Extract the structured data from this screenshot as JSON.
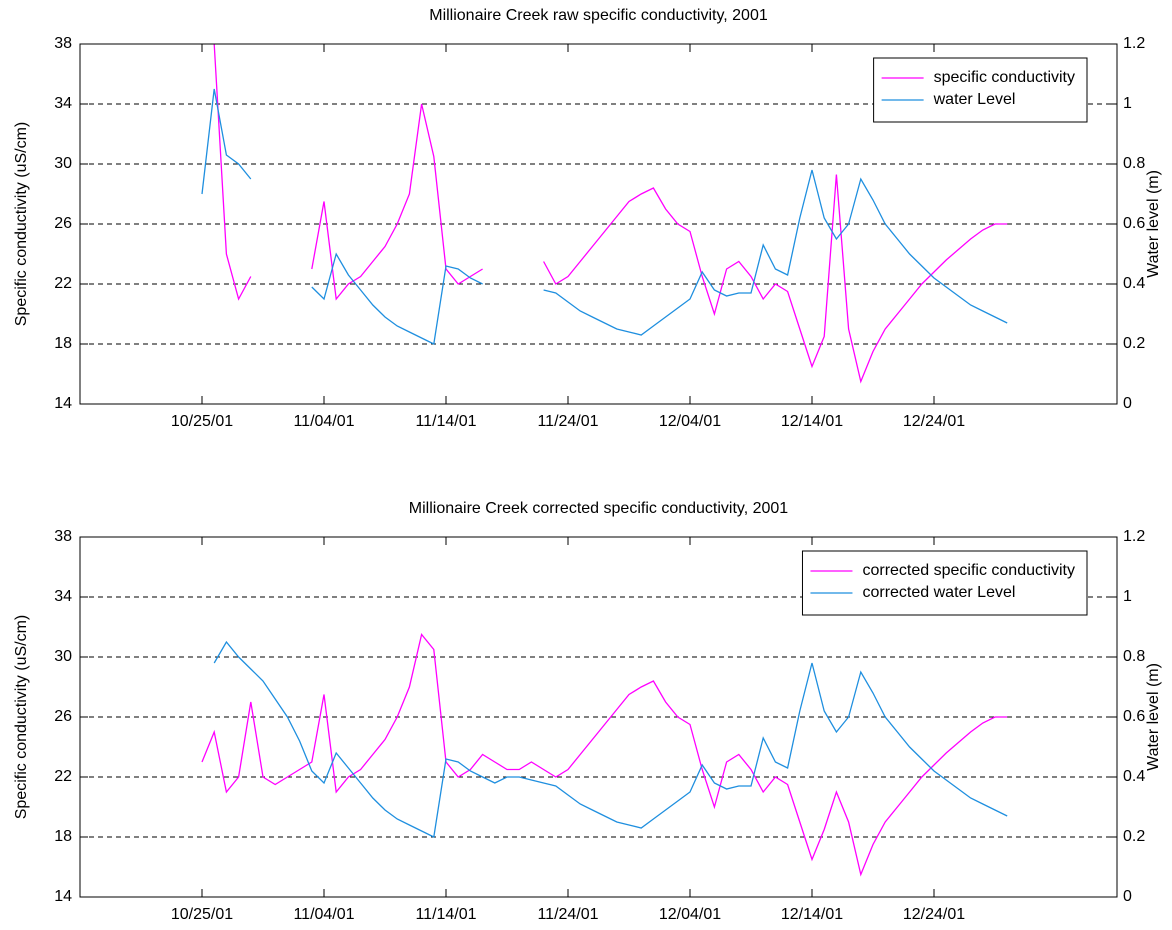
{
  "chart_data": [
    {
      "type": "line",
      "title": "Millionaire Creek raw specific conductivity, 2001",
      "ylabel": "Specific conductivity (uS/cm)",
      "y2label": "Water level (m)",
      "x": [
        "2001-10-25",
        "2001-10-26",
        "2001-10-27",
        "2001-10-28",
        "2001-10-29",
        "2001-10-30",
        "2001-10-31",
        "2001-11-01",
        "2001-11-02",
        "2001-11-03",
        "2001-11-04",
        "2001-11-05",
        "2001-11-06",
        "2001-11-07",
        "2001-11-08",
        "2001-11-09",
        "2001-11-10",
        "2001-11-11",
        "2001-11-12",
        "2001-11-13",
        "2001-11-14",
        "2001-11-15",
        "2001-11-16",
        "2001-11-17",
        "2001-11-18",
        "2001-11-19",
        "2001-11-20",
        "2001-11-21",
        "2001-11-22",
        "2001-11-23",
        "2001-11-24",
        "2001-11-25",
        "2001-11-26",
        "2001-11-27",
        "2001-11-28",
        "2001-11-29",
        "2001-11-30",
        "2001-12-01",
        "2001-12-02",
        "2001-12-03",
        "2001-12-04",
        "2001-12-05",
        "2001-12-06",
        "2001-12-07",
        "2001-12-08",
        "2001-12-09",
        "2001-12-10",
        "2001-12-11",
        "2001-12-12",
        "2001-12-13",
        "2001-12-14",
        "2001-12-15",
        "2001-12-16",
        "2001-12-17",
        "2001-12-18",
        "2001-12-19",
        "2001-12-20",
        "2001-12-21",
        "2001-12-22",
        "2001-12-23",
        "2001-12-24",
        "2001-12-25",
        "2001-12-26",
        "2001-12-27",
        "2001-12-28",
        "2001-12-29",
        "2001-12-30"
      ],
      "xlim": [
        "2001-10-15",
        "2002-01-08"
      ],
      "xticks": [
        {
          "value": "2001-10-25",
          "label": "10/25/01"
        },
        {
          "value": "2001-11-04",
          "label": "11/04/01"
        },
        {
          "value": "2001-11-14",
          "label": "11/14/01"
        },
        {
          "value": "2001-11-24",
          "label": "11/24/01"
        },
        {
          "value": "2001-12-04",
          "label": "12/04/01"
        },
        {
          "value": "2001-12-14",
          "label": "12/14/01"
        },
        {
          "value": "2001-12-24",
          "label": "12/24/01"
        }
      ],
      "ylim": [
        14,
        38
      ],
      "yticks": [
        14,
        18,
        22,
        26,
        30,
        34,
        38
      ],
      "y2lim": [
        0,
        1.2
      ],
      "y2ticks": [
        0,
        0.2,
        0.4,
        0.6,
        0.8,
        1,
        1.2
      ],
      "grid": "y",
      "legend": "upper right",
      "series": [
        {
          "name": "specific conductivity",
          "color": "#ff00ff",
          "values": [
            null,
            38,
            24,
            21,
            22.5,
            null,
            null,
            null,
            null,
            23,
            27.5,
            21,
            22,
            22.5,
            23.5,
            24.5,
            26,
            28,
            34,
            30.5,
            23,
            22,
            22.5,
            23,
            null,
            null,
            null,
            null,
            23.5,
            22,
            22.5,
            23.5,
            24.5,
            25.5,
            26.5,
            27.5,
            28,
            28.4,
            27,
            26,
            25.5,
            22.5,
            20,
            23,
            23.5,
            22.5,
            21,
            22,
            21.5,
            19,
            16.5,
            18.5,
            29.3,
            19,
            15.5,
            17.5,
            19,
            20,
            21,
            22,
            22.8,
            23.6,
            24.3,
            25,
            25.6,
            26,
            26
          ]
        },
        {
          "name": "water Level",
          "color": "#1f8fdf",
          "axis": "y2",
          "values": [
            0.7,
            1.05,
            0.83,
            0.8,
            0.75,
            null,
            null,
            null,
            null,
            0.39,
            0.35,
            0.5,
            0.43,
            0.38,
            0.33,
            0.29,
            0.26,
            0.24,
            0.22,
            0.2,
            0.46,
            0.45,
            0.42,
            0.4,
            null,
            null,
            null,
            null,
            0.38,
            0.37,
            0.34,
            0.31,
            0.29,
            0.27,
            0.25,
            0.24,
            0.23,
            0.26,
            0.29,
            0.32,
            0.35,
            0.44,
            0.38,
            0.36,
            0.37,
            0.37,
            0.53,
            0.45,
            0.43,
            0.62,
            0.78,
            0.62,
            0.55,
            0.6,
            0.75,
            0.68,
            0.6,
            0.55,
            0.5,
            0.46,
            0.42,
            0.39,
            0.36,
            0.33,
            0.31,
            0.29,
            0.27
          ]
        }
      ]
    },
    {
      "type": "line",
      "title": "Millionaire Creek corrected specific conductivity, 2001",
      "ylabel": "Specific conductivity (uS/cm)",
      "y2label": "Water level (m)",
      "x": [
        "2001-10-25",
        "2001-10-26",
        "2001-10-27",
        "2001-10-28",
        "2001-10-29",
        "2001-10-30",
        "2001-10-31",
        "2001-11-01",
        "2001-11-02",
        "2001-11-03",
        "2001-11-04",
        "2001-11-05",
        "2001-11-06",
        "2001-11-07",
        "2001-11-08",
        "2001-11-09",
        "2001-11-10",
        "2001-11-11",
        "2001-11-12",
        "2001-11-13",
        "2001-11-14",
        "2001-11-15",
        "2001-11-16",
        "2001-11-17",
        "2001-11-18",
        "2001-11-19",
        "2001-11-20",
        "2001-11-21",
        "2001-11-22",
        "2001-11-23",
        "2001-11-24",
        "2001-11-25",
        "2001-11-26",
        "2001-11-27",
        "2001-11-28",
        "2001-11-29",
        "2001-11-30",
        "2001-12-01",
        "2001-12-02",
        "2001-12-03",
        "2001-12-04",
        "2001-12-05",
        "2001-12-06",
        "2001-12-07",
        "2001-12-08",
        "2001-12-09",
        "2001-12-10",
        "2001-12-11",
        "2001-12-12",
        "2001-12-13",
        "2001-12-14",
        "2001-12-15",
        "2001-12-16",
        "2001-12-17",
        "2001-12-18",
        "2001-12-19",
        "2001-12-20",
        "2001-12-21",
        "2001-12-22",
        "2001-12-23",
        "2001-12-24",
        "2001-12-25",
        "2001-12-26",
        "2001-12-27",
        "2001-12-28",
        "2001-12-29",
        "2001-12-30"
      ],
      "xlim": [
        "2001-10-15",
        "2002-01-08"
      ],
      "xticks": [
        {
          "value": "2001-10-25",
          "label": "10/25/01"
        },
        {
          "value": "2001-11-04",
          "label": "11/04/01"
        },
        {
          "value": "2001-11-14",
          "label": "11/14/01"
        },
        {
          "value": "2001-11-24",
          "label": "11/24/01"
        },
        {
          "value": "2001-12-04",
          "label": "12/04/01"
        },
        {
          "value": "2001-12-14",
          "label": "12/14/01"
        },
        {
          "value": "2001-12-24",
          "label": "12/24/01"
        }
      ],
      "ylim": [
        14,
        38
      ],
      "yticks": [
        14,
        18,
        22,
        26,
        30,
        34,
        38
      ],
      "y2lim": [
        0,
        1.2
      ],
      "y2ticks": [
        0,
        0.2,
        0.4,
        0.6,
        0.8,
        1,
        1.2
      ],
      "grid": "y",
      "legend": "upper right",
      "series": [
        {
          "name": "corrected specific conductivity",
          "color": "#ff00ff",
          "values": [
            23,
            25,
            21,
            22,
            27,
            22,
            21.5,
            22,
            22.5,
            23,
            27.5,
            21,
            22,
            22.5,
            23.5,
            24.5,
            26,
            28,
            31.5,
            30.5,
            23,
            22,
            22.5,
            23.5,
            23,
            22.5,
            22.5,
            23,
            22.5,
            22,
            22.5,
            23.5,
            24.5,
            25.5,
            26.5,
            27.5,
            28,
            28.4,
            27,
            26,
            25.5,
            22.5,
            20,
            23,
            23.5,
            22.5,
            21,
            22,
            21.5,
            19,
            16.5,
            18.5,
            21,
            19,
            15.5,
            17.5,
            19,
            20,
            21,
            22,
            22.8,
            23.6,
            24.3,
            25,
            25.6,
            26,
            26
          ]
        },
        {
          "name": "corrected water Level",
          "color": "#1f8fdf",
          "axis": "y2",
          "values": [
            null,
            0.78,
            0.85,
            0.8,
            0.76,
            0.72,
            0.66,
            0.6,
            0.52,
            0.42,
            0.38,
            0.48,
            0.43,
            0.38,
            0.33,
            0.29,
            0.26,
            0.24,
            0.22,
            0.2,
            0.46,
            0.45,
            0.42,
            0.4,
            0.38,
            0.4,
            0.4,
            0.39,
            0.38,
            0.37,
            0.34,
            0.31,
            0.29,
            0.27,
            0.25,
            0.24,
            0.23,
            0.26,
            0.29,
            0.32,
            0.35,
            0.44,
            0.38,
            0.36,
            0.37,
            0.37,
            0.53,
            0.45,
            0.43,
            0.62,
            0.78,
            0.62,
            0.55,
            0.6,
            0.75,
            0.68,
            0.6,
            0.55,
            0.5,
            0.46,
            0.42,
            0.39,
            0.36,
            0.33,
            0.31,
            0.29,
            0.27
          ]
        }
      ]
    }
  ]
}
